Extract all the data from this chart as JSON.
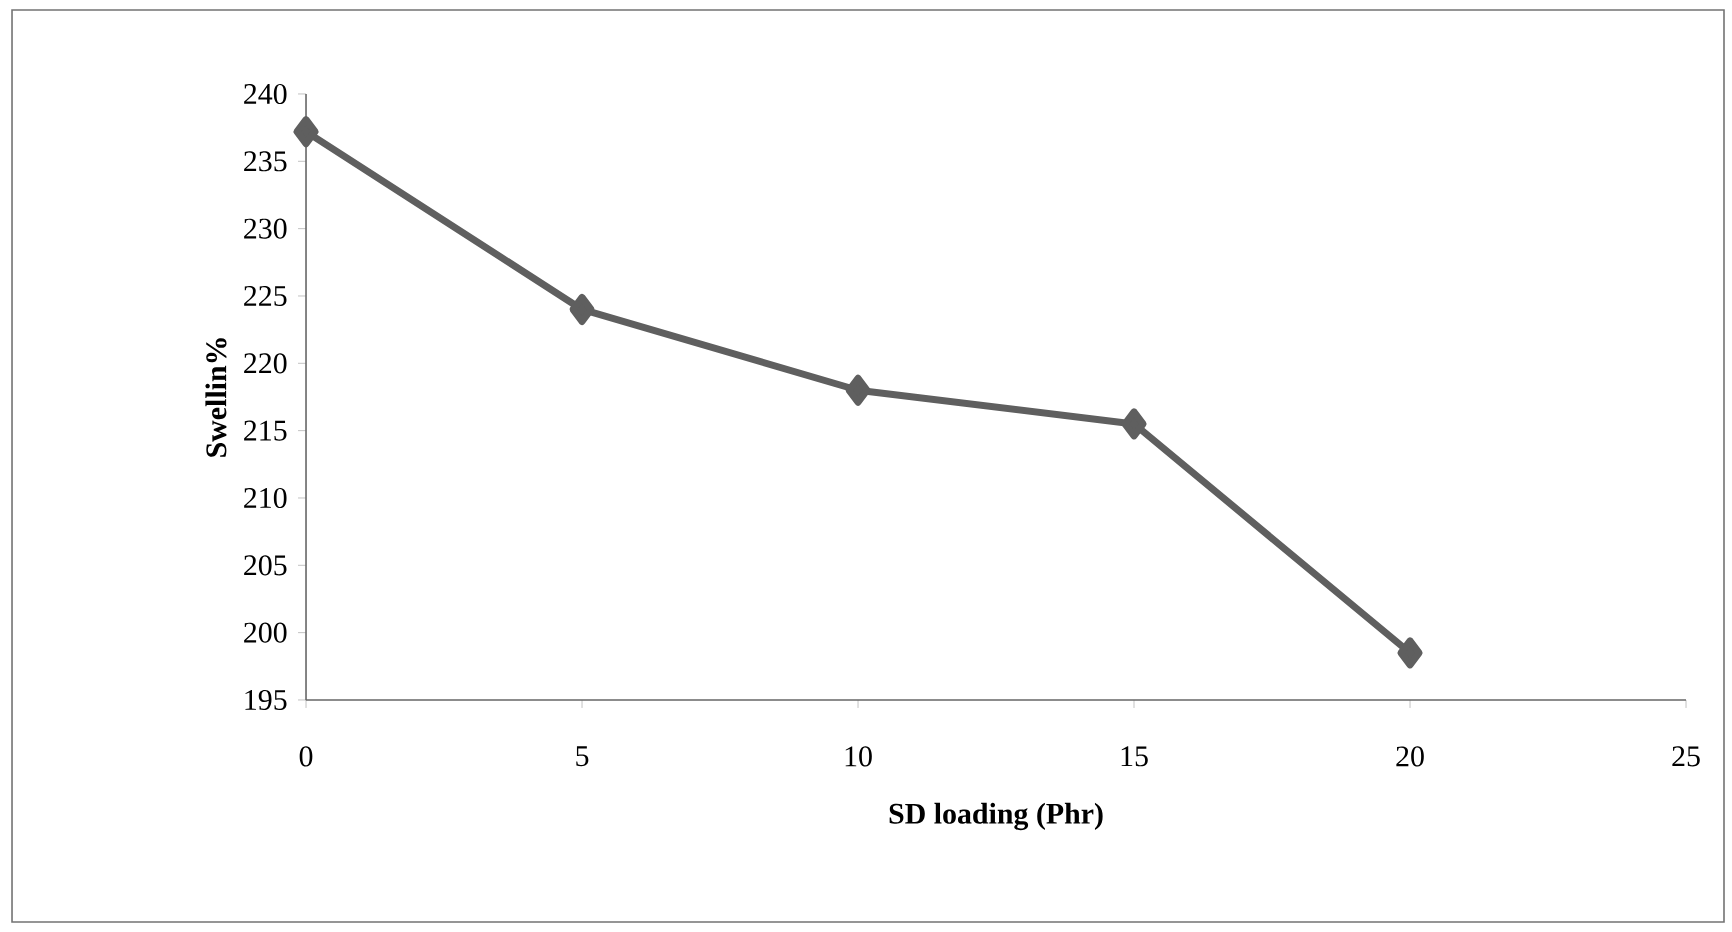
{
  "chart_data": {
    "type": "line",
    "xlabel": "SD loading (Phr)",
    "ylabel": "Swellin%",
    "x": [
      0,
      5,
      10,
      15,
      20
    ],
    "series": [
      {
        "color": "#5f5f5f",
        "values": [
          237.2,
          224,
          218,
          215.5,
          198.5
        ]
      }
    ],
    "xlim": [
      0,
      25
    ],
    "xticks": [
      0,
      5,
      10,
      15,
      20,
      25
    ],
    "ylim": [
      195,
      240
    ],
    "yticks": [
      195,
      200,
      205,
      210,
      215,
      220,
      225,
      230,
      235,
      240
    ],
    "grid": false,
    "marker": "diamond",
    "line_style": "solid"
  }
}
